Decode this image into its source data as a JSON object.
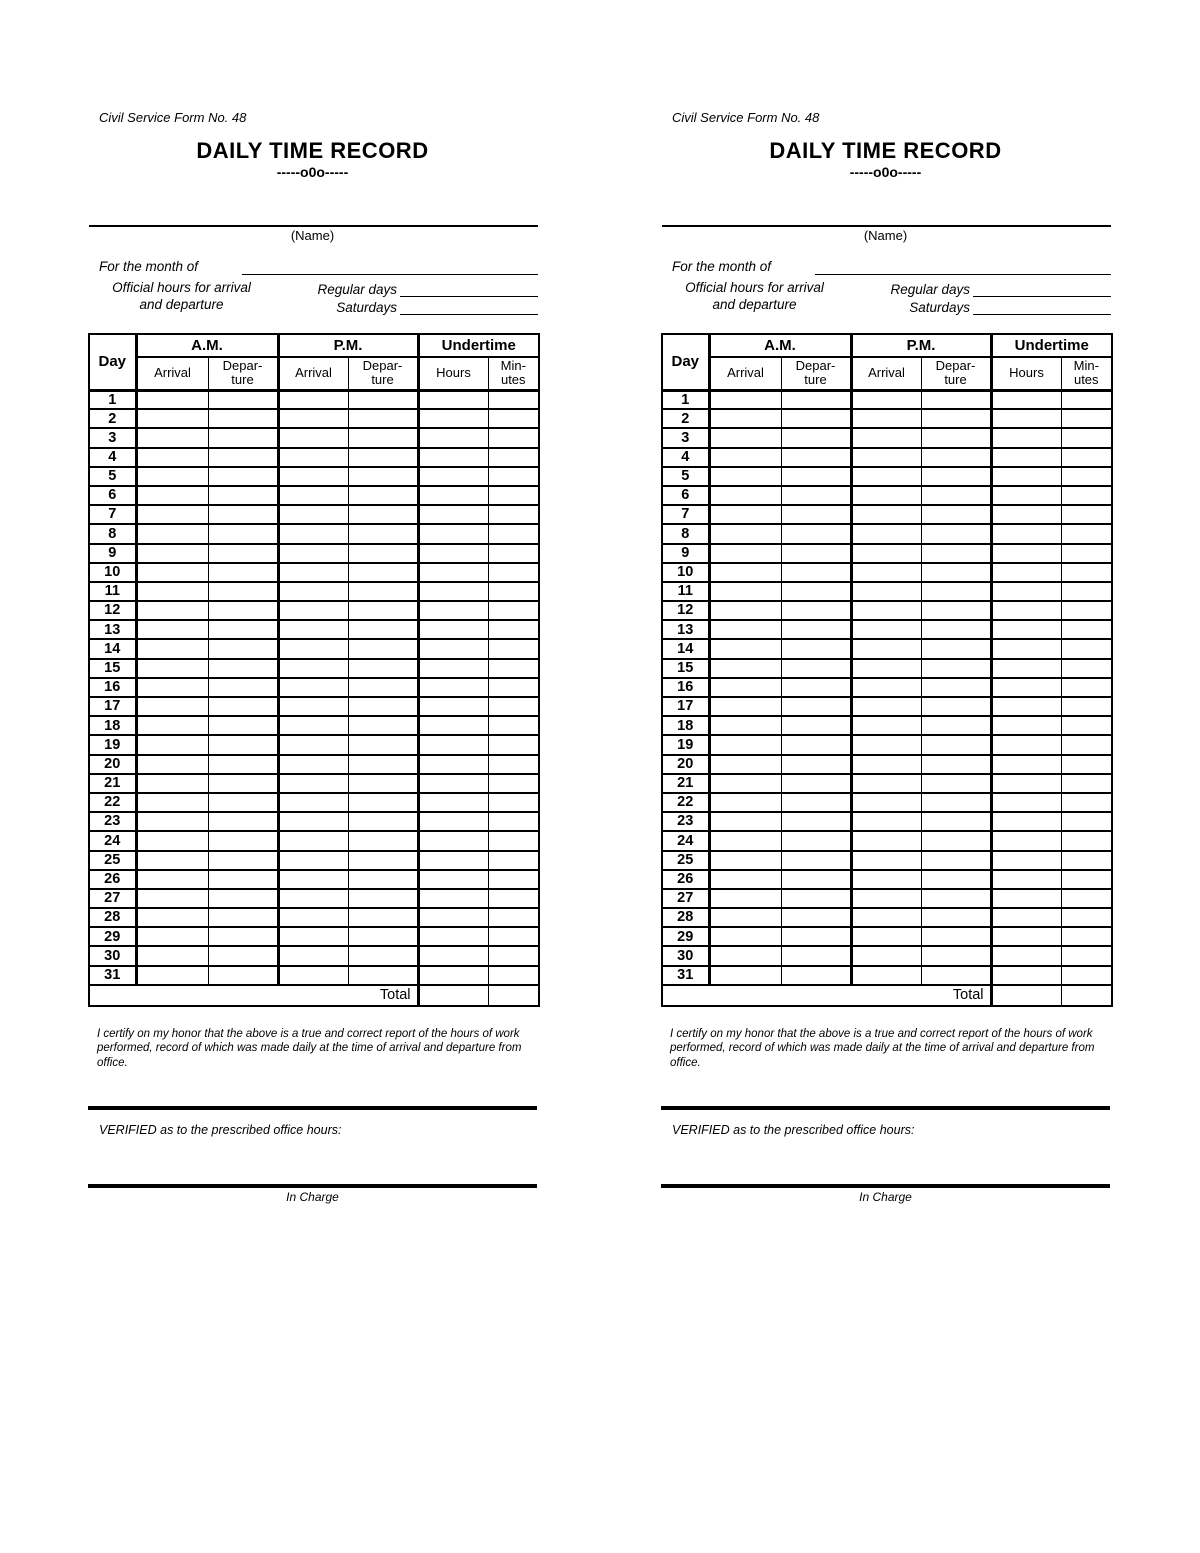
{
  "page": {
    "background": "#ffffff",
    "ink": "#000000"
  },
  "form_count": 2,
  "form": {
    "form_no": "Civil Service Form No. 48",
    "title": "DAILY TIME RECORD",
    "separator": "-----o0o-----",
    "name_caption": "(Name)",
    "month_label": "For the month of",
    "official_hours_line1": "Official hours for arrival",
    "official_hours_line2": "and departure",
    "regular_days_label": "Regular days",
    "saturdays_label": "Saturdays",
    "table": {
      "day_header": "Day",
      "am_header": "A.M.",
      "pm_header": "P.M.",
      "undertime_header": "Undertime",
      "arrival_header": "Arrival",
      "departure_header": "Depar-\nture",
      "hours_header": "Hours",
      "minutes_header": "Min-\nutes",
      "days": [
        "1",
        "2",
        "3",
        "4",
        "5",
        "6",
        "7",
        "8",
        "9",
        "10",
        "11",
        "12",
        "13",
        "14",
        "15",
        "16",
        "17",
        "18",
        "19",
        "20",
        "21",
        "22",
        "23",
        "24",
        "25",
        "26",
        "27",
        "28",
        "29",
        "30",
        "31"
      ],
      "entry_columns": [
        "am-arrival",
        "am-departure",
        "pm-arrival",
        "pm-departure",
        "undertime-hours",
        "undertime-minutes"
      ],
      "total_label": "Total"
    },
    "certification": "I certify on my honor that the above is a true and correct report of the hours of work performed, record of which was made daily at the time of arrival and departure from office.",
    "verified_label": "VERIFIED as to the prescribed office hours:",
    "in_charge_label": "In Charge"
  }
}
